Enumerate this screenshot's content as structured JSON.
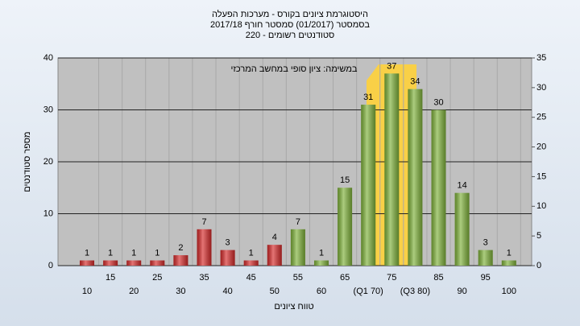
{
  "chart_data": {
    "type": "bar",
    "title": [
      "היסטוגרמת ציונים בקורס - מערכות הפעלה",
      "בסמסטר  (01/2017)  סמסטר חורף 2017/18",
      "סטודנטים רשומים - 220"
    ],
    "annotation": "במשימה: ציון סופי במחשב המרכזי",
    "xlabel": "טווח ציונים",
    "ylabel": "מספר סטודנטים",
    "categories": [
      "10",
      "15",
      "20",
      "25",
      "30",
      "35",
      "40",
      "45",
      "50",
      "55",
      "60",
      "65",
      "(Q1 70)",
      "75",
      "(Q3 80)",
      "85",
      "90",
      "95",
      "100"
    ],
    "values": [
      1,
      1,
      1,
      1,
      2,
      7,
      3,
      1,
      4,
      7,
      1,
      15,
      31,
      37,
      34,
      30,
      14,
      3,
      1
    ],
    "colors": [
      "#d62a2a",
      "#d62a2a",
      "#d62a2a",
      "#d62a2a",
      "#d62a2a",
      "#d62a2a",
      "#d62a2a",
      "#d62a2a",
      "#d62a2a",
      "#7fb23a",
      "#7fb23a",
      "#7fb23a",
      "#7fb23a",
      "#7fb23a",
      "#7fb23a",
      "#7fb23a",
      "#7fb23a",
      "#7fb23a",
      "#7fb23a"
    ],
    "ylim": [
      0,
      40
    ],
    "yticks": [
      0,
      10,
      20,
      30,
      40
    ],
    "y2lim": [
      0,
      35
    ],
    "y2ticks": [
      0,
      5,
      10,
      15,
      20,
      25,
      30,
      35
    ],
    "grid": true
  }
}
